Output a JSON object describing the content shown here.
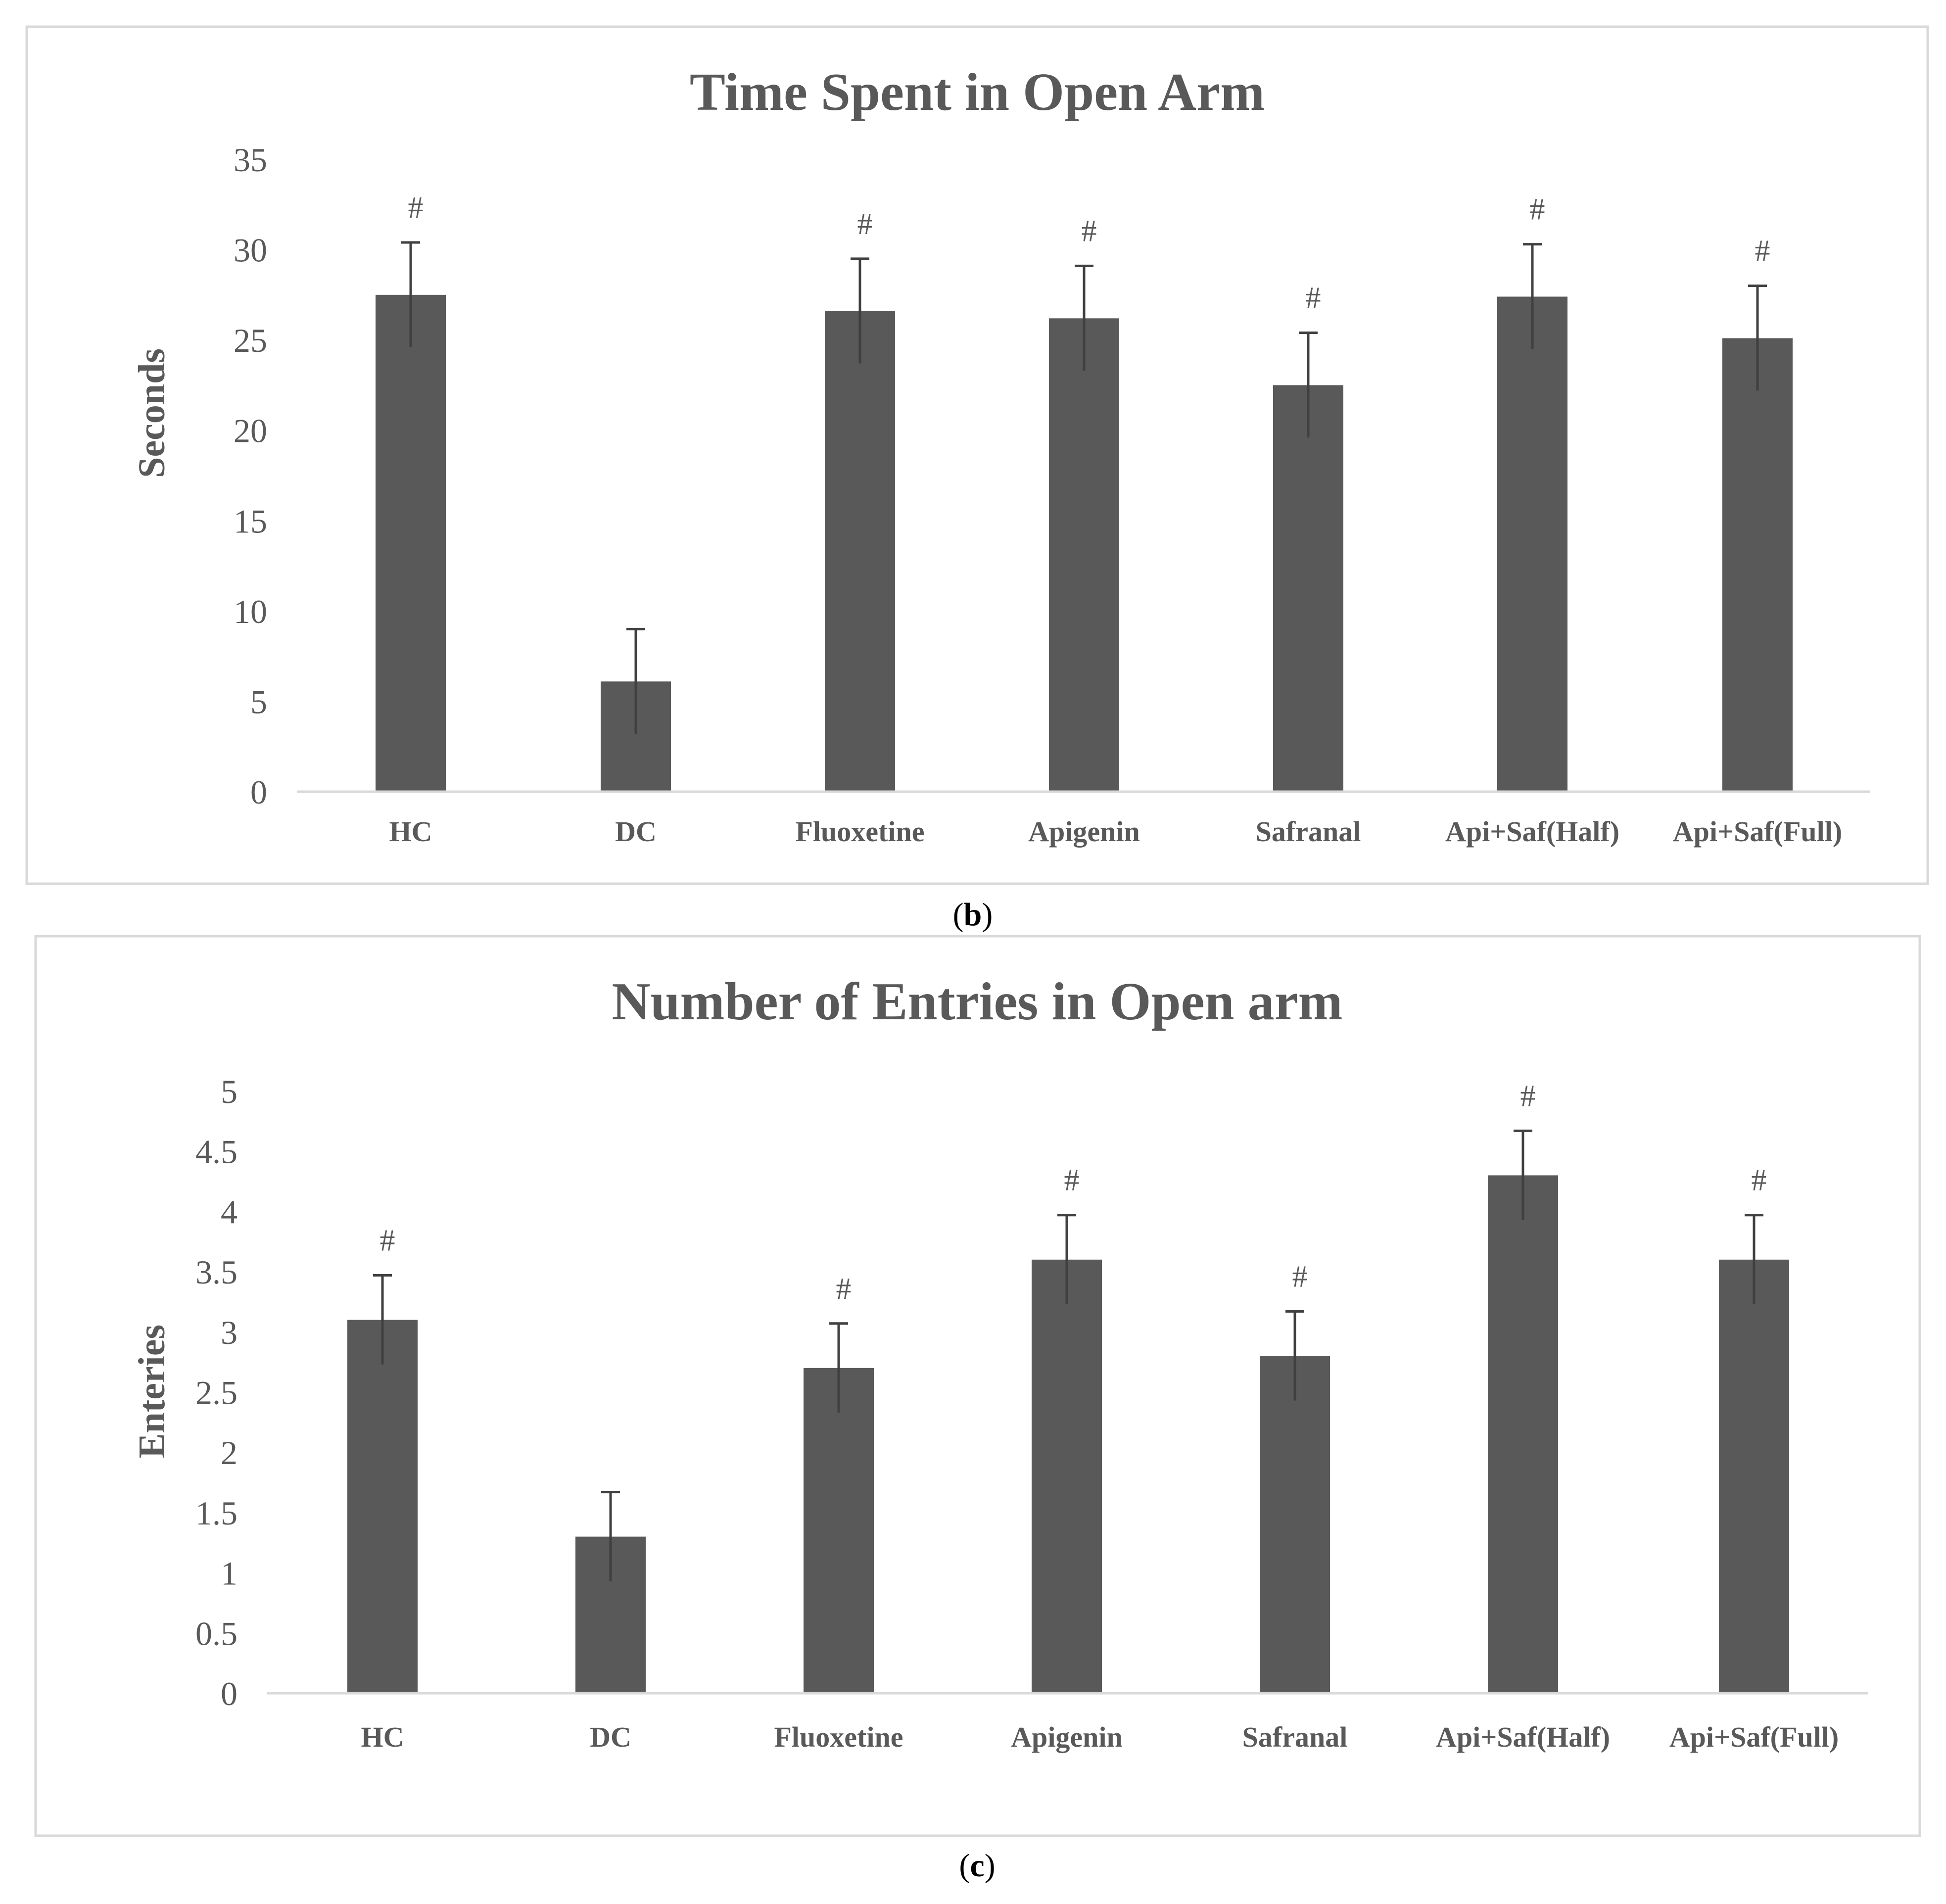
{
  "chart_data": [
    {
      "type": "bar",
      "title": "Time Spent in Open Arm",
      "ylabel": "Seconds",
      "xlabel": "",
      "panel_label": "b",
      "categories": [
        "HC",
        "DC",
        "Fluoxetine",
        "Apigenin",
        "Safranal",
        "Api+Saf(Half)",
        "Api+Saf(Full)"
      ],
      "values": [
        27.5,
        6.1,
        26.6,
        26.2,
        22.5,
        27.4,
        25.1
      ],
      "error": [
        2.9,
        2.9,
        2.9,
        2.9,
        2.9,
        2.9,
        2.9
      ],
      "significance": [
        "#",
        "",
        "#",
        "#",
        "#",
        "#",
        "#"
      ],
      "ylim": [
        0,
        35
      ],
      "yticks": [
        "0",
        "5",
        "10",
        "15",
        "20",
        "25",
        "30",
        "35"
      ],
      "grid": false,
      "legend": false,
      "bar_color": "#595959"
    },
    {
      "type": "bar",
      "title": "Number of Entries in Open arm",
      "ylabel": "Enteries",
      "xlabel": "",
      "panel_label": "c",
      "categories": [
        "HC",
        "DC",
        "Fluoxetine",
        "Apigenin",
        "Safranal",
        "Api+Saf(Half)",
        "Api+Saf(Full)"
      ],
      "values": [
        3.1,
        1.3,
        2.7,
        3.6,
        2.8,
        4.3,
        3.6
      ],
      "error": [
        0.37,
        0.37,
        0.37,
        0.37,
        0.37,
        0.37,
        0.37
      ],
      "significance": [
        "#",
        "",
        "#",
        "#",
        "#",
        "#",
        "#"
      ],
      "ylim": [
        0,
        5
      ],
      "yticks": [
        "0",
        "0.5",
        "1",
        "1.5",
        "2",
        "2.5",
        "3",
        "3.5",
        "4",
        "4.5",
        "5"
      ],
      "grid": false,
      "legend": false,
      "bar_color": "#595959"
    }
  ]
}
